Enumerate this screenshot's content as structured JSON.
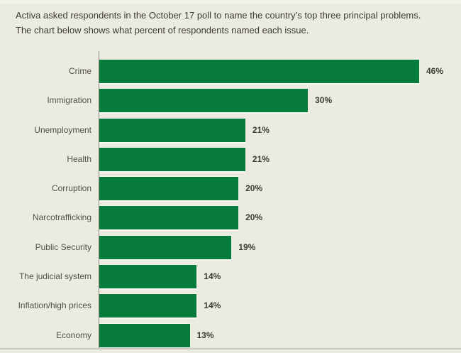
{
  "header": {
    "line1": "Activa asked respondents in the October 17 poll to name the country’s top three principal problems.",
    "line2": "The chart below shows what percent of respondents named each issue."
  },
  "chart_data": {
    "type": "bar",
    "orientation": "horizontal",
    "categories": [
      "Crime",
      "Immigration",
      "Unemployment",
      "Health",
      "Corruption",
      "Narcotrafficking",
      "Public Security",
      "The judicial system",
      "Inflation/high prices",
      "Economy"
    ],
    "values": [
      46,
      30,
      21,
      21,
      20,
      20,
      19,
      14,
      14,
      13
    ],
    "value_labels": [
      "46%",
      "30%",
      "21%",
      "21%",
      "20%",
      "20%",
      "19%",
      "14%",
      "14%",
      "13%"
    ],
    "unit": "percent of respondents",
    "xlim": [
      0,
      50
    ],
    "grid": false,
    "legend": null,
    "bar_color": "#077B3C",
    "background_color": "#ECEBE1",
    "label_color": "#51504A",
    "value_label_color": "#3C3B35"
  }
}
